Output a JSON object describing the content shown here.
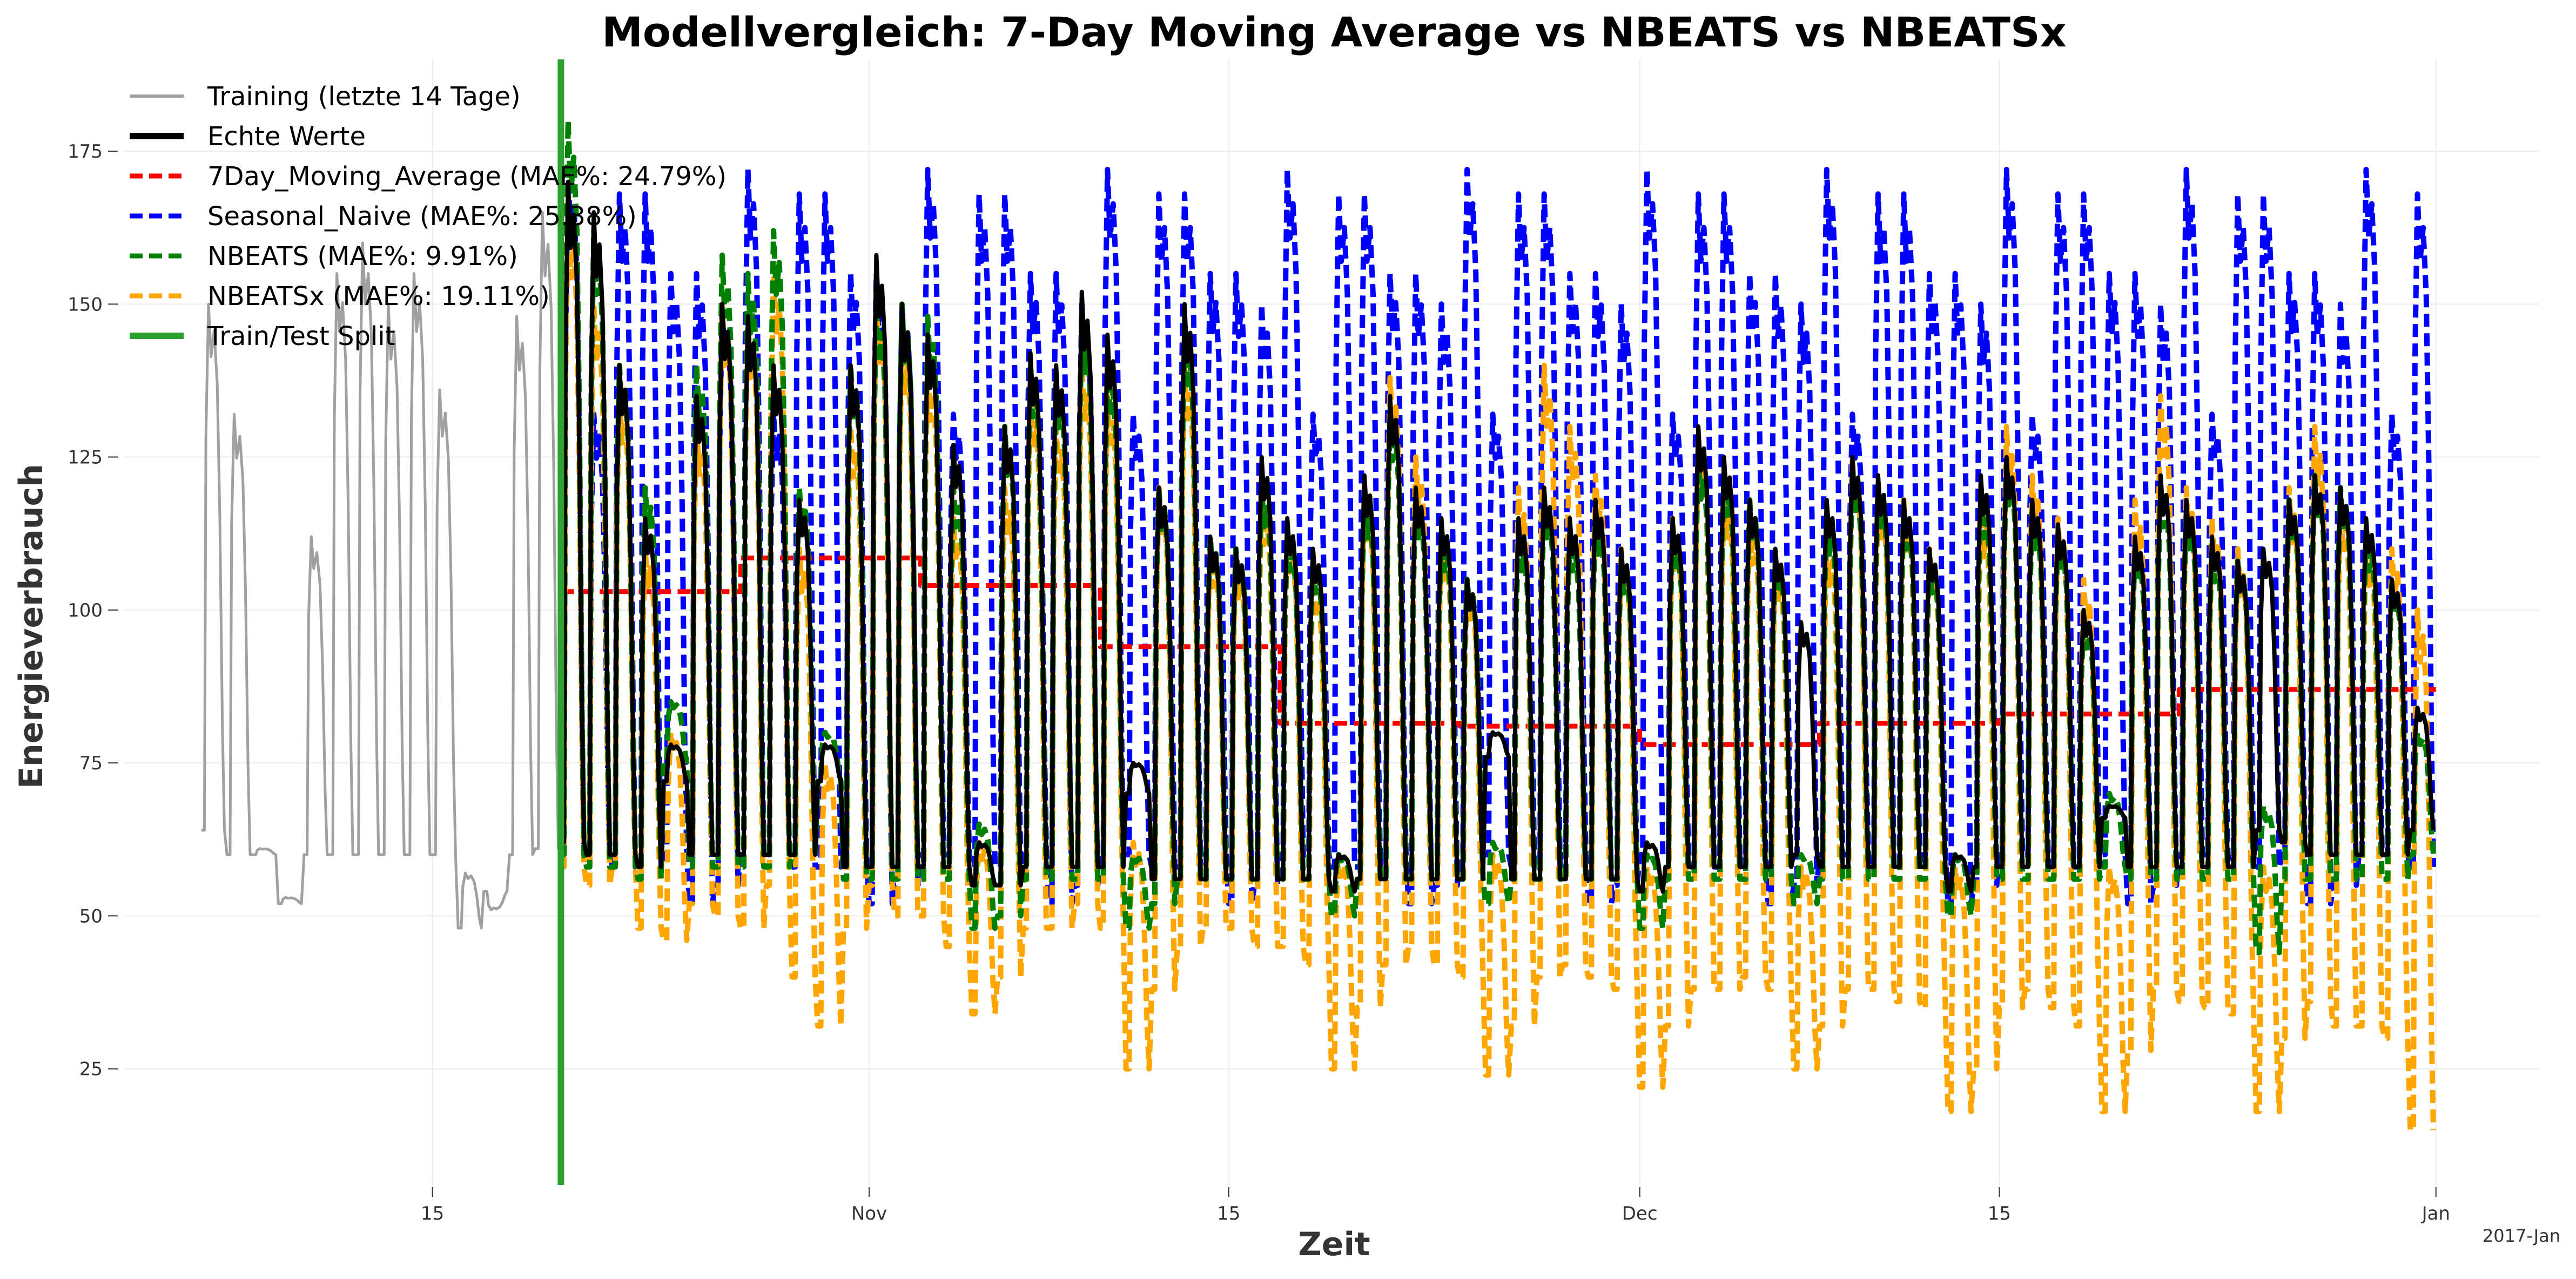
{
  "chart_data": {
    "type": "line",
    "title": "Modellvergleich: 7-Day Moving Average vs NBEATS vs NBEATSx",
    "xlabel": "Zeit",
    "ylabel": "Energieverbrauch",
    "xlim": [
      "2016-10-03",
      "2017-01-05"
    ],
    "ylim": [
      6,
      190
    ],
    "x_tick_labels": [
      {
        "date": "2016-10-15",
        "label": "15"
      },
      {
        "date": "2016-11-01",
        "label": "Nov"
      },
      {
        "date": "2016-11-15",
        "label": "15"
      },
      {
        "date": "2016-12-01",
        "label": "Dec"
      },
      {
        "date": "2016-12-15",
        "label": "15"
      },
      {
        "date": "2017-01-01",
        "label": "Jan"
      }
    ],
    "x_offset_label": "2017-Jan",
    "y_ticks": [
      25,
      50,
      75,
      100,
      125,
      150,
      175
    ],
    "grid": true,
    "legend_position": "top-left",
    "train_test_split": "2016-10-20",
    "test_end": "2017-01-01",
    "series": [
      {
        "name": "Training (letzte 14 Tage)",
        "color": "#a0a0a0",
        "style": "solid",
        "daily_x": [
          "2016-10-06",
          "2016-10-07",
          "2016-10-08",
          "2016-10-09",
          "2016-10-10",
          "2016-10-11",
          "2016-10-12",
          "2016-10-13",
          "2016-10-14",
          "2016-10-15",
          "2016-10-16",
          "2016-10-17",
          "2016-10-18",
          "2016-10-19"
        ],
        "daily_peak": [
          150,
          132,
          61,
          53,
          112,
          155,
          160,
          150,
          155,
          136,
          57,
          51,
          148,
          165
        ],
        "daily_base": [
          64,
          60,
          60,
          52,
          60,
          60,
          60,
          60,
          60,
          60,
          48,
          54,
          60,
          61
        ]
      },
      {
        "name": "Echte Werte",
        "color": "#000000",
        "style": "solid",
        "daily_x": [
          "2016-10-20",
          "2016-10-21",
          "2016-10-22",
          "2016-10-23",
          "2016-10-24",
          "2016-10-25",
          "2016-10-26",
          "2016-10-27",
          "2016-10-28",
          "2016-10-29",
          "2016-10-30",
          "2016-10-31",
          "2016-11-01",
          "2016-11-02",
          "2016-11-03",
          "2016-11-04",
          "2016-11-05",
          "2016-11-06",
          "2016-11-07",
          "2016-11-08",
          "2016-11-09",
          "2016-11-10",
          "2016-11-11",
          "2016-11-12",
          "2016-11-13",
          "2016-11-14",
          "2016-11-15",
          "2016-11-16",
          "2016-11-17",
          "2016-11-18",
          "2016-11-19",
          "2016-11-20",
          "2016-11-21",
          "2016-11-22",
          "2016-11-23",
          "2016-11-24",
          "2016-11-25",
          "2016-11-26",
          "2016-11-27",
          "2016-11-28",
          "2016-11-29",
          "2016-11-30",
          "2016-12-01",
          "2016-12-02",
          "2016-12-03",
          "2016-12-04",
          "2016-12-05",
          "2016-12-06",
          "2016-12-07",
          "2016-12-08",
          "2016-12-09",
          "2016-12-10",
          "2016-12-11",
          "2016-12-12",
          "2016-12-13",
          "2016-12-14",
          "2016-12-15",
          "2016-12-16",
          "2016-12-17",
          "2016-12-18",
          "2016-12-19",
          "2016-12-20",
          "2016-12-21",
          "2016-12-22",
          "2016-12-23",
          "2016-12-24",
          "2016-12-25",
          "2016-12-26",
          "2016-12-27",
          "2016-12-28",
          "2016-12-29",
          "2016-12-30",
          "2016-12-31"
        ],
        "daily_peak": [
          170,
          165,
          140,
          115,
          78,
          135,
          150,
          148,
          140,
          118,
          78,
          140,
          158,
          150,
          145,
          127,
          62,
          130,
          142,
          140,
          152,
          145,
          75,
          120,
          150,
          112,
          110,
          125,
          115,
          110,
          60,
          122,
          135,
          120,
          115,
          105,
          80,
          115,
          120,
          115,
          118,
          110,
          62,
          115,
          130,
          125,
          118,
          110,
          98,
          118,
          125,
          122,
          118,
          110,
          60,
          122,
          125,
          118,
          114,
          100,
          68,
          112,
          122,
          118,
          112,
          108,
          110,
          118,
          122,
          120,
          115,
          105,
          84
        ],
        "daily_base": [
          62,
          60,
          60,
          58,
          72,
          60,
          60,
          60,
          60,
          60,
          72,
          58,
          58,
          58,
          58,
          58,
          55,
          55,
          58,
          58,
          58,
          58,
          70,
          56,
          56,
          56,
          56,
          56,
          56,
          56,
          54,
          56,
          56,
          56,
          56,
          56,
          76,
          56,
          56,
          56,
          56,
          56,
          54,
          58,
          58,
          58,
          58,
          58,
          60,
          58,
          58,
          58,
          58,
          58,
          54,
          58,
          58,
          58,
          58,
          58,
          66,
          58,
          58,
          58,
          58,
          58,
          64,
          62,
          60,
          60,
          60,
          60,
          64
        ]
      },
      {
        "name": "7Day_Moving_Average (MAE%: 24.79%)",
        "color": "#ff0000",
        "style": "dashed",
        "segments": [
          {
            "start": "2016-10-20",
            "end": "2016-10-27",
            "value": 103
          },
          {
            "start": "2016-10-27",
            "end": "2016-11-03",
            "value": 108.5
          },
          {
            "start": "2016-11-03",
            "end": "2016-11-10",
            "value": 104
          },
          {
            "start": "2016-11-10",
            "end": "2016-11-17",
            "value": 94
          },
          {
            "start": "2016-11-17",
            "end": "2016-11-24",
            "value": 81.5
          },
          {
            "start": "2016-11-24",
            "end": "2016-12-01",
            "value": 81
          },
          {
            "start": "2016-12-01",
            "end": "2016-12-08",
            "value": 78
          },
          {
            "start": "2016-12-08",
            "end": "2016-12-15",
            "value": 81.5
          },
          {
            "start": "2016-12-15",
            "end": "2016-12-22",
            "value": 83
          },
          {
            "start": "2016-12-22",
            "end": "2017-01-01",
            "value": 87
          }
        ]
      },
      {
        "name": "Seasonal_Naive (MAE%: 25.38%)",
        "color": "#0000ff",
        "style": "dashed",
        "weekly_peak": [
          172,
          132,
          168,
          168,
          155,
          155,
          150
        ],
        "weekly_base": [
          60,
          60,
          58,
          58,
          60,
          52,
          55
        ],
        "n_weeks": 11
      },
      {
        "name": "NBEATS (MAE%: 9.91%)",
        "color": "#008000",
        "style": "dashed",
        "daily_peak": [
          180,
          162,
          140,
          120,
          85,
          140,
          158,
          155,
          162,
          120,
          80,
          140,
          150,
          150,
          148,
          120,
          65,
          130,
          140,
          138,
          148,
          140,
          60,
          120,
          145,
          112,
          110,
          120,
          112,
          108,
          60,
          118,
          132,
          118,
          112,
          105,
          62,
          112,
          118,
          112,
          115,
          108,
          60,
          112,
          125,
          122,
          118,
          108,
          60,
          115,
          122,
          120,
          116,
          108,
          60,
          118,
          124,
          116,
          112,
          98,
          70,
          110,
          120,
          116,
          110,
          108,
          68,
          118,
          122,
          120,
          112,
          104,
          80
        ],
        "daily_base": [
          60,
          58,
          58,
          56,
          75,
          58,
          58,
          58,
          58,
          60,
          72,
          56,
          56,
          56,
          56,
          56,
          48,
          50,
          56,
          56,
          56,
          56,
          48,
          52,
          56,
          56,
          56,
          56,
          56,
          56,
          50,
          56,
          56,
          56,
          56,
          56,
          52,
          56,
          56,
          56,
          56,
          56,
          48,
          56,
          56,
          56,
          56,
          56,
          52,
          56,
          56,
          56,
          56,
          56,
          50,
          56,
          56,
          56,
          56,
          56,
          58,
          56,
          56,
          56,
          56,
          56,
          44,
          56,
          56,
          56,
          56,
          56,
          60
        ]
      },
      {
        "name": "NBEATSx (MAE%: 19.11%)",
        "color": "#ffa500",
        "style": "dashed",
        "daily_peak": [
          165,
          150,
          135,
          110,
          80,
          130,
          150,
          148,
          155,
          110,
          75,
          130,
          150,
          145,
          140,
          115,
          62,
          120,
          135,
          130,
          140,
          135,
          62,
          120,
          140,
          110,
          108,
          118,
          112,
          105,
          60,
          120,
          138,
          125,
          112,
          105,
          60,
          120,
          140,
          130,
          122,
          110,
          58,
          115,
          128,
          120,
          115,
          108,
          58,
          112,
          125,
          120,
          118,
          110,
          58,
          118,
          130,
          122,
          115,
          105,
          58,
          118,
          135,
          120,
          115,
          110,
          58,
          120,
          130,
          118,
          112,
          110,
          100
        ],
        "daily_base": [
          58,
          55,
          58,
          48,
          46,
          52,
          50,
          48,
          55,
          40,
          32,
          48,
          55,
          50,
          50,
          45,
          34,
          40,
          48,
          48,
          52,
          48,
          25,
          38,
          45,
          48,
          48,
          45,
          45,
          42,
          25,
          35,
          42,
          45,
          42,
          40,
          24,
          32,
          40,
          42,
          40,
          38,
          22,
          32,
          38,
          38,
          40,
          38,
          25,
          32,
          38,
          38,
          36,
          35,
          18,
          25,
          35,
          38,
          35,
          32,
          18,
          28,
          38,
          36,
          35,
          34,
          18,
          30,
          36,
          32,
          32,
          30,
          15
        ]
      },
      {
        "name": "Train/Test Split",
        "color": "#2ca02c",
        "style": "vertical-line"
      }
    ]
  }
}
